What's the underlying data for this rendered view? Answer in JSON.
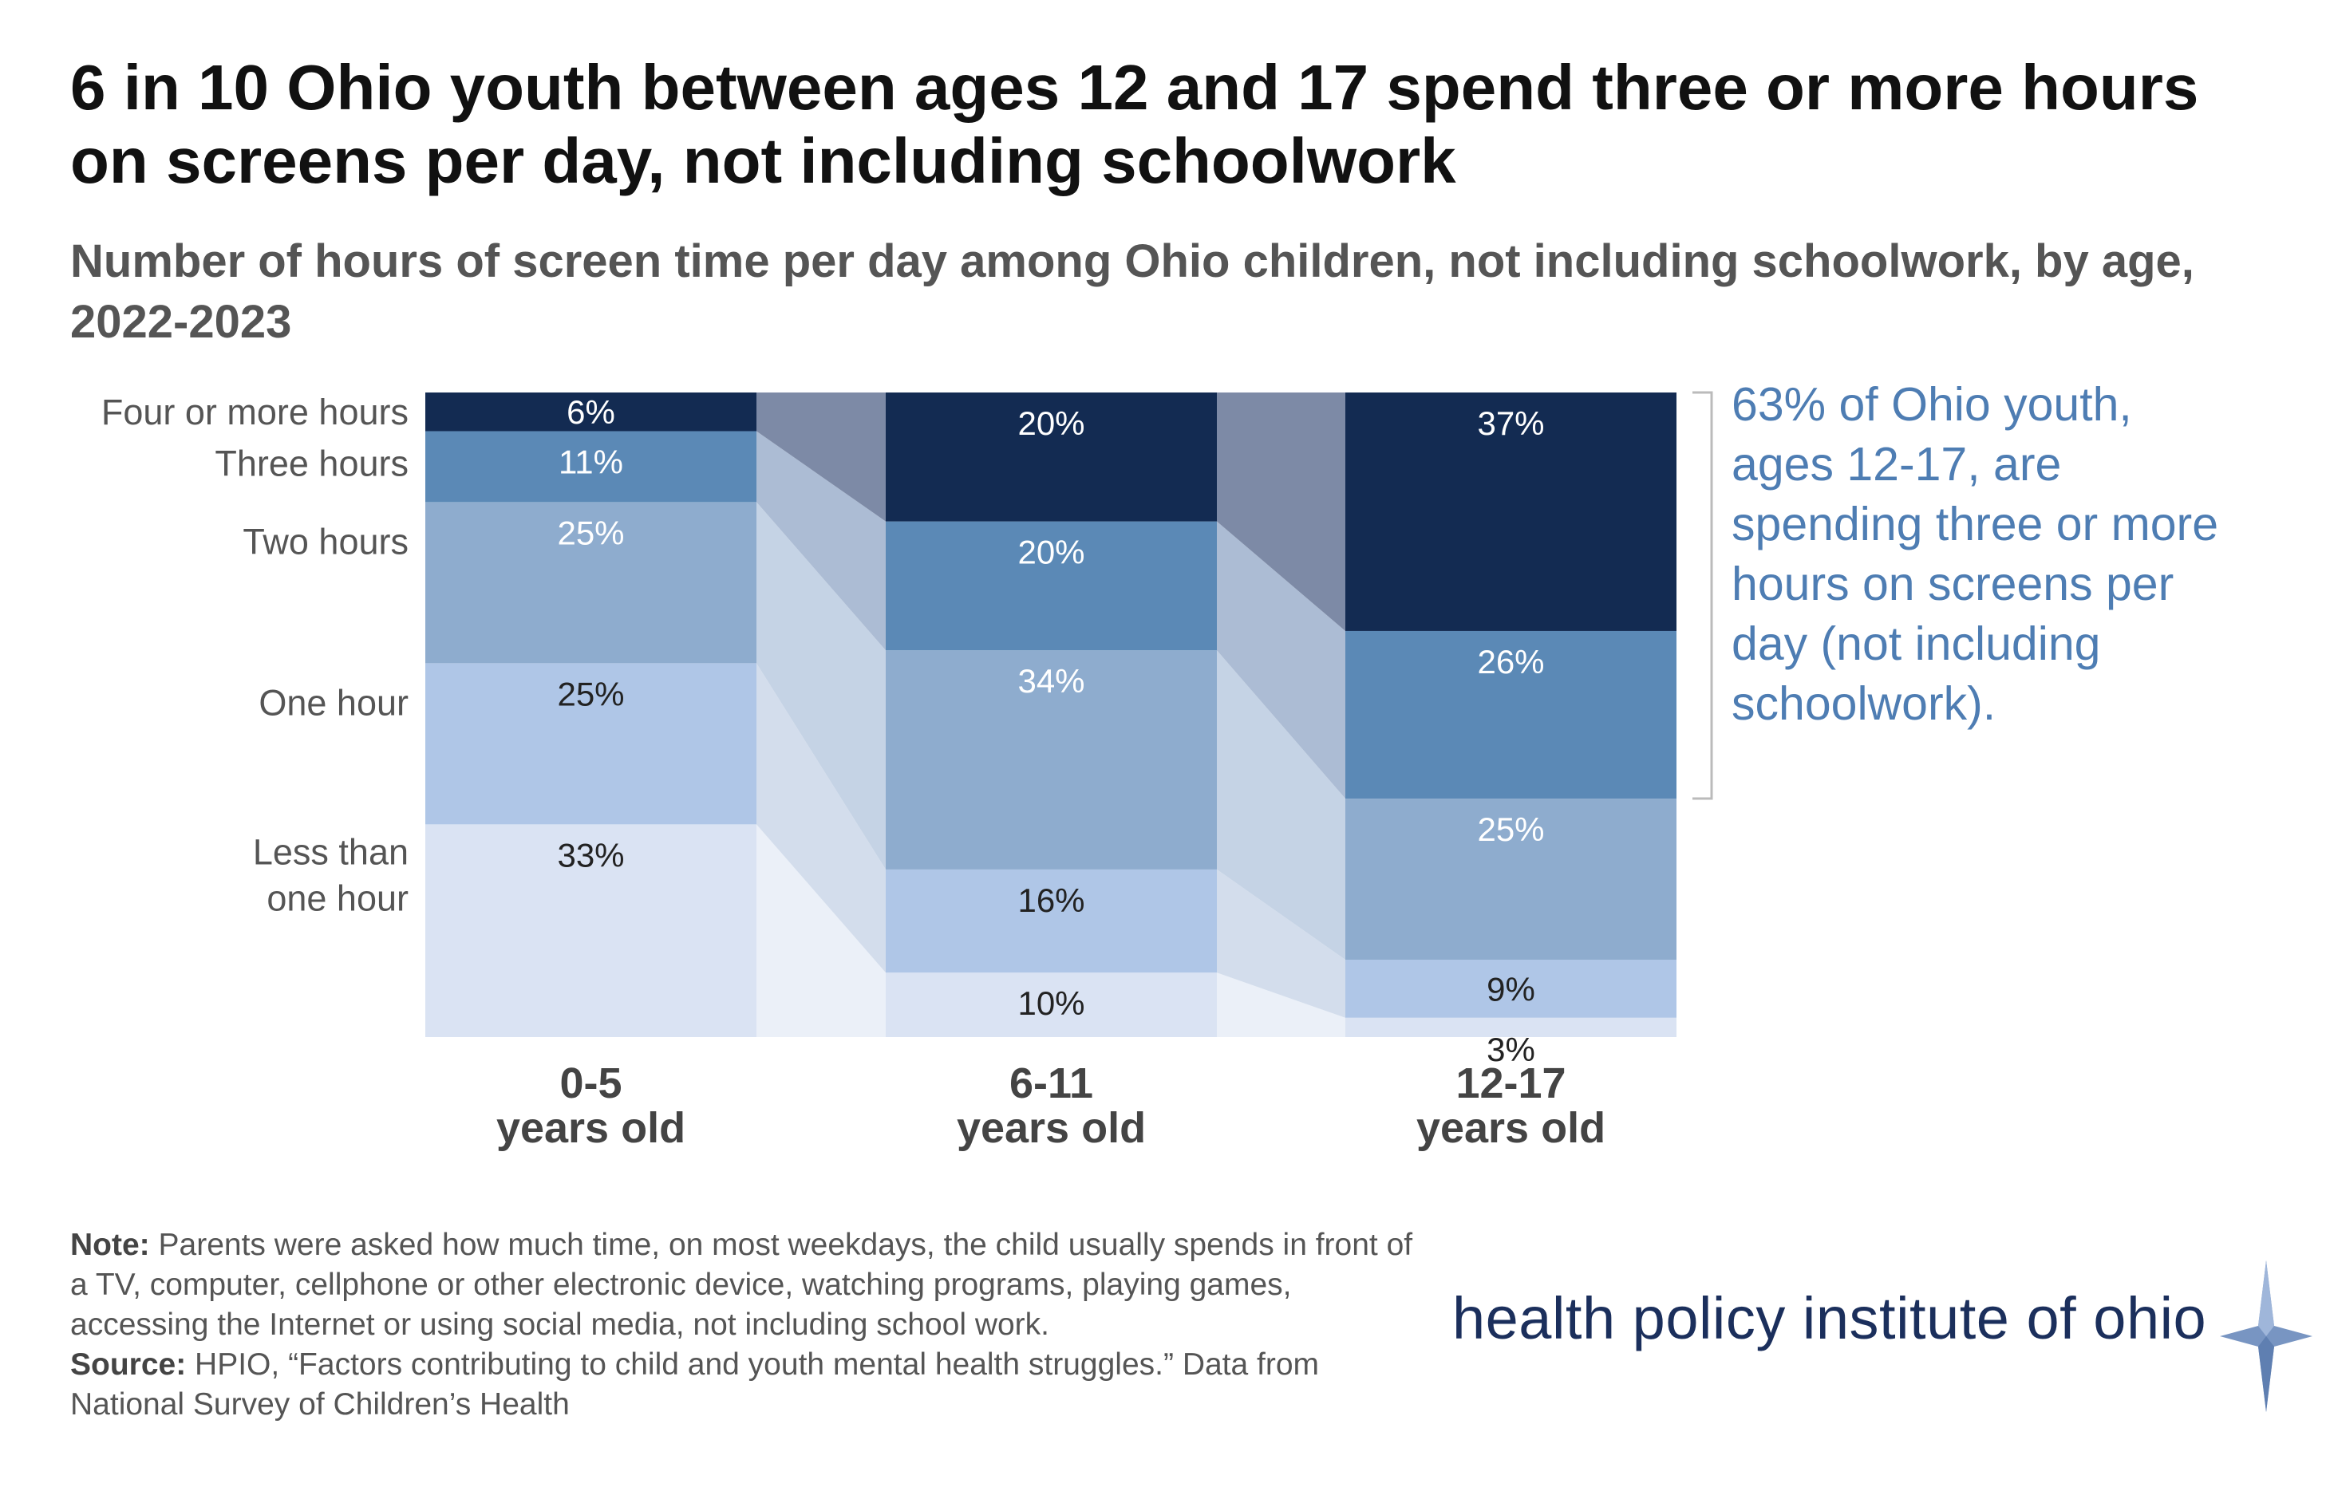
{
  "title": "6 in 10 Ohio youth between ages 12 and 17 spend three or more hours on screens per day, not including schoolwork",
  "subtitle": "Number of hours of screen time per day among Ohio children, not including schoolwork, by age, 2022-2023",
  "callout": "63% of Ohio youth, ages 12-17, are spending three or more hours on screens per day (not including schoolwork).",
  "note": {
    "label": "Note:",
    "text": "Parents were asked how much time, on most weekdays, the child usually spends in front of a TV, computer, cellphone or other electronic device, watching programs, playing games, accessing the Internet or using social media, not including school work.",
    "source_label": "Source:",
    "source_text": "HPIO, “Factors contributing to child and youth mental health struggles.” Data from National Survey of Children’s Health"
  },
  "logo": {
    "text": "health policy institute of ohio"
  },
  "chart_data": {
    "type": "bar",
    "stacked": true,
    "percent": true,
    "categories": [
      {
        "line1": "0-5",
        "line2": "years old"
      },
      {
        "line1": "6-11",
        "line2": "years old"
      },
      {
        "line1": "12-17",
        "line2": "years old"
      }
    ],
    "series": [
      {
        "name": "Less than one hour",
        "name_lines": [
          "Less than",
          "one hour"
        ],
        "values": [
          33,
          10,
          3
        ],
        "labels": [
          "33%",
          "10%",
          "3%"
        ],
        "color": "#dae3f3",
        "label_color": "#222222"
      },
      {
        "name": "One hour",
        "name_lines": [
          "One hour"
        ],
        "values": [
          25,
          16,
          9
        ],
        "labels": [
          "25%",
          "16%",
          "9%"
        ],
        "color": "#afc6e7",
        "label_color": "#222222"
      },
      {
        "name": "Two hours",
        "name_lines": [
          "Two hours"
        ],
        "values": [
          25,
          34,
          25
        ],
        "labels": [
          "25%",
          "34%",
          "25%"
        ],
        "color": "#8eacce",
        "label_color": "#ffffff"
      },
      {
        "name": "Three hours",
        "name_lines": [
          "Three hours"
        ],
        "values": [
          11,
          20,
          26
        ],
        "labels": [
          "11%",
          "20%",
          "26%"
        ],
        "color": "#5b89b6",
        "label_color": "#ffffff"
      },
      {
        "name": "Four or more hours",
        "name_lines": [
          "Four or more hours"
        ],
        "values": [
          6,
          20,
          37
        ],
        "labels": [
          "6%",
          "20%",
          "37%"
        ],
        "color": "#132b52",
        "label_color": "#ffffff"
      }
    ],
    "ylim": [
      0,
      100
    ],
    "connector_colors": [
      "#ebf0f8",
      "#d3ddec",
      "#c5d3e5",
      "#acbcd4",
      "#7d8aa6"
    ],
    "bracket_color": "#bbbbbb"
  }
}
